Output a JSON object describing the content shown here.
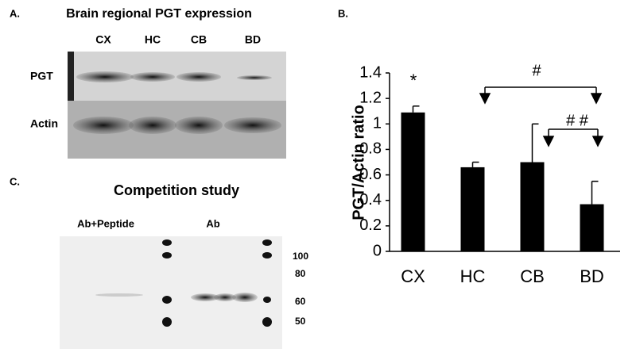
{
  "panel_a": {
    "label": "A.",
    "title": "Brain regional PGT expression",
    "lanes": [
      "CX",
      "HC",
      "CB",
      "BD"
    ],
    "rows": [
      "PGT",
      "Actin"
    ]
  },
  "panel_c": {
    "label": "C.",
    "title": "Competition study",
    "groups": [
      "Ab+Peptide",
      "Ab"
    ],
    "markers": [
      "100",
      "80",
      "60",
      "50"
    ]
  },
  "panel_b": {
    "label": "B."
  },
  "chart_data": {
    "type": "bar",
    "ylabel": "PGT/Actin ratio",
    "categories": [
      "CX",
      "HC",
      "CB",
      "BD"
    ],
    "values": [
      1.09,
      0.66,
      0.7,
      0.37
    ],
    "errors": [
      0.05,
      0.04,
      0.3,
      0.18
    ],
    "color": "#000000",
    "ylim": [
      0,
      1.4
    ],
    "yticks": [
      0,
      0.2,
      0.4,
      0.6,
      0.8,
      1,
      1.2,
      1.4
    ],
    "annotations": [
      "*",
      "#",
      "# #"
    ]
  }
}
